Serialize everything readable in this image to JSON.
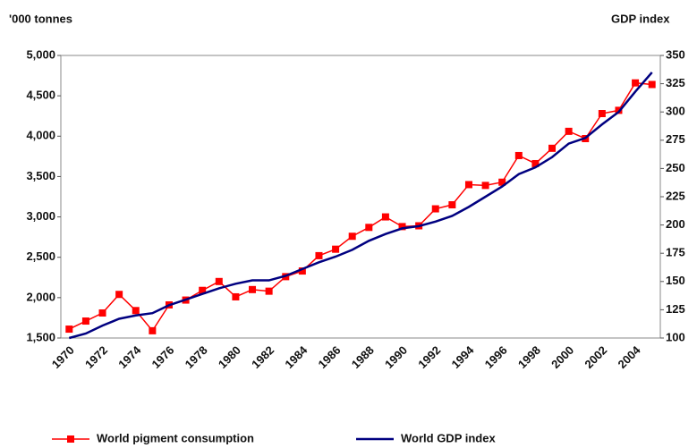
{
  "chart_data": {
    "type": "line",
    "y_label": "'000 tonnes",
    "y2_label": "GDP index",
    "categories": [
      "1970",
      null,
      "1972",
      null,
      "1974",
      null,
      "1976",
      null,
      "1978",
      null,
      "1980",
      null,
      "1982",
      null,
      "1984",
      null,
      "1986",
      null,
      "1988",
      null,
      "1990",
      null,
      "1992",
      null,
      "1994",
      null,
      "1996",
      null,
      "1998",
      null,
      "2000",
      null,
      "2002",
      null,
      "2004",
      null
    ],
    "series": [
      {
        "name": "World pigment consumption",
        "color": "#ff0000",
        "marker": "square",
        "values": [
          1610,
          1710,
          1810,
          2040,
          1840,
          1590,
          1910,
          1970,
          2090,
          2200,
          2010,
          2100,
          2080,
          2260,
          2330,
          2520,
          2600,
          2760,
          2870,
          3000,
          2880,
          2890,
          3100,
          3150,
          3400,
          3390,
          3430,
          3760,
          3660,
          3850,
          4060,
          3970,
          4280,
          4320,
          4660,
          4640
        ]
      },
      {
        "name": "World GDP index",
        "color": "#000080",
        "axis": "y2",
        "values": [
          100,
          104,
          111,
          117,
          120,
          122,
          129,
          134,
          139,
          144,
          148,
          151,
          151,
          155,
          161,
          167,
          172,
          178,
          186,
          192,
          197,
          199,
          203,
          208,
          216,
          225,
          234,
          245,
          251,
          260,
          272,
          277,
          289,
          300,
          318,
          335
        ]
      }
    ],
    "ylim": [
      1500,
      5000
    ],
    "yticks": [
      {
        "value": 1500,
        "label": "1,500"
      },
      {
        "value": 2000,
        "label": "2,000"
      },
      {
        "value": 2500,
        "label": "2,500"
      },
      {
        "value": 3000,
        "label": "3,000"
      },
      {
        "value": 3500,
        "label": "3,500"
      },
      {
        "value": 4000,
        "label": "4,000"
      },
      {
        "value": 4500,
        "label": "4,500"
      },
      {
        "value": 5000,
        "label": "5,000"
      }
    ],
    "y2lim": [
      100,
      350
    ],
    "y2ticks": [
      100,
      125,
      150,
      175,
      200,
      225,
      250,
      275,
      300,
      325,
      350
    ],
    "legend": "bottom"
  }
}
